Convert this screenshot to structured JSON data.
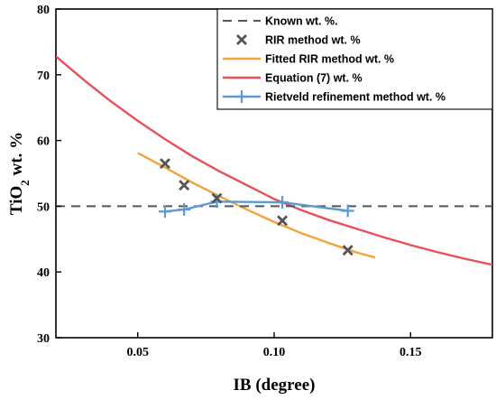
{
  "chart_data": {
    "type": "line",
    "xlabel": "IB (degree)",
    "ylabel_main": "TiO",
    "ylabel_sub": "2",
    "ylabel_rest": " wt. %",
    "xlim": [
      0.02,
      0.18
    ],
    "ylim": [
      30,
      80
    ],
    "xticks": [
      0.05,
      0.1,
      0.15
    ],
    "xtick_labels": [
      "0.05",
      "0.10",
      "0.15"
    ],
    "yticks": [
      30,
      40,
      50,
      60,
      70,
      80
    ],
    "ytick_labels": [
      "30",
      "40",
      "50",
      "60",
      "70",
      "80"
    ],
    "grid": false,
    "legend_position": "top-right",
    "series": [
      {
        "name": "Known wt. %.",
        "kind": "hline",
        "color": "#555555",
        "x": [
          0.02,
          0.18
        ],
        "y": [
          50,
          50
        ]
      },
      {
        "name": "RIR method wt. %",
        "kind": "scatter",
        "color": "#555555",
        "x": [
          0.06,
          0.067,
          0.079,
          0.103,
          0.127
        ],
        "y": [
          56.5,
          53.2,
          51.2,
          47.8,
          43.3
        ]
      },
      {
        "name": "Fitted RIR method wt. %",
        "kind": "line",
        "color": "#F5A23A",
        "x": [
          0.05,
          0.06,
          0.07,
          0.08,
          0.09,
          0.1,
          0.11,
          0.12,
          0.13,
          0.137
        ],
        "y": [
          58.1,
          55.9,
          53.6,
          51.5,
          49.5,
          47.6,
          45.9,
          44.4,
          43.0,
          42.2
        ]
      },
      {
        "name": "Equation (7) wt. %",
        "kind": "line",
        "color": "#E8505B",
        "x": [
          0.02,
          0.03,
          0.04,
          0.05,
          0.06,
          0.07,
          0.08,
          0.09,
          0.1,
          0.11,
          0.12,
          0.13,
          0.14,
          0.15,
          0.16,
          0.17,
          0.18
        ],
        "y": [
          72.8,
          69.3,
          66.0,
          63.0,
          60.2,
          57.6,
          55.3,
          53.2,
          51.1,
          49.4,
          47.9,
          46.6,
          45.3,
          44.1,
          43.0,
          42.0,
          41.1
        ]
      },
      {
        "name": "Rietveld refinement method wt. %",
        "kind": "line-markers",
        "color": "#5B9BD5",
        "x": [
          0.06,
          0.067,
          0.079,
          0.103,
          0.127
        ],
        "y": [
          49.2,
          49.5,
          50.7,
          50.6,
          49.3
        ]
      }
    ]
  }
}
